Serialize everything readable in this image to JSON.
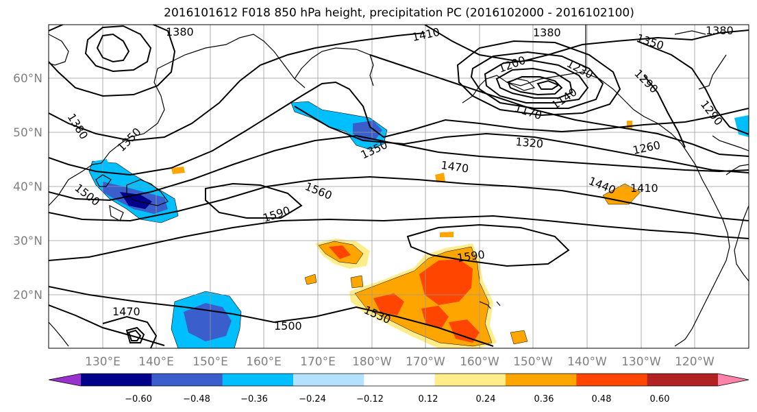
{
  "title": "2016101612 F018 850 hPa height, precipitation PC (2016102000 - 2016102100)",
  "map": {
    "lat_labels": [
      "60°N",
      "50°N",
      "40°N",
      "30°N",
      "20°N"
    ],
    "lon_labels": [
      "130°E",
      "140°E",
      "150°E",
      "160°E",
      "170°E",
      "180°W",
      "170°W",
      "160°W",
      "150°W",
      "140°W",
      "130°W",
      "120°W"
    ],
    "contour_labels": [
      "1380",
      "1410",
      "1380",
      "1380",
      "1350",
      "1200",
      "1230",
      "1290",
      "1290",
      "1170",
      "1140",
      "1380",
      "1350",
      "1320",
      "1260",
      "1470",
      "1440",
      "1410",
      "1500",
      "1560",
      "1590",
      "1590",
      "1530",
      "1470",
      "1500"
    ]
  },
  "colorbar": {
    "ticks": [
      "−0.60",
      "−0.48",
      "−0.36",
      "−0.24",
      "−0.12",
      "0.12",
      "0.24",
      "0.36",
      "0.48",
      "0.60"
    ],
    "colors": [
      "#9932cc",
      "#00008b",
      "#3a5fcd",
      "#00bfff",
      "#b2e2ff",
      "#ffffff",
      "#ffec8b",
      "#ffa500",
      "#ff4500",
      "#b22222",
      "#ff82ab"
    ]
  }
}
